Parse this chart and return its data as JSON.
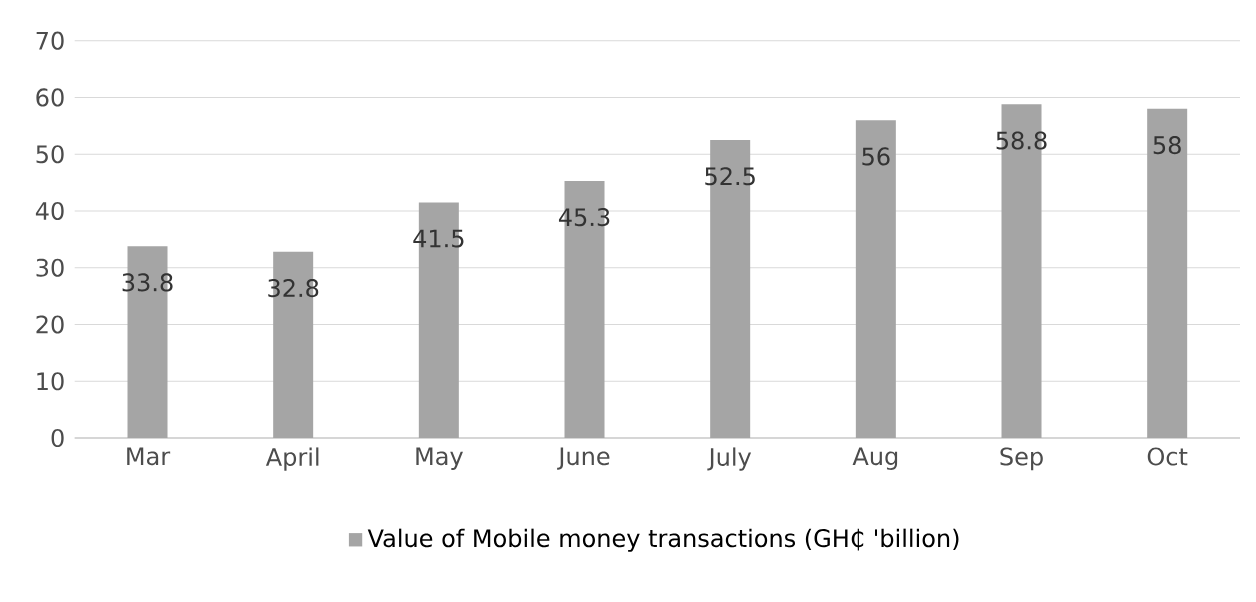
{
  "chart_data": {
    "type": "bar",
    "categories": [
      "Mar",
      "April",
      "May",
      "June",
      "July",
      "Aug",
      "Sep",
      "Oct"
    ],
    "series": [
      {
        "name": "Value of Mobile money transactions (GH₵ 'billion)",
        "color": "#a5a5a5",
        "values": [
          33.8,
          32.8,
          41.5,
          45.3,
          52.5,
          56,
          58.8,
          58
        ]
      }
    ],
    "ylim": [
      0,
      70
    ],
    "yticks": [
      0,
      10,
      20,
      30,
      40,
      50,
      60,
      70
    ],
    "grid": "y",
    "legend": "bottom",
    "data_labels": true
  }
}
